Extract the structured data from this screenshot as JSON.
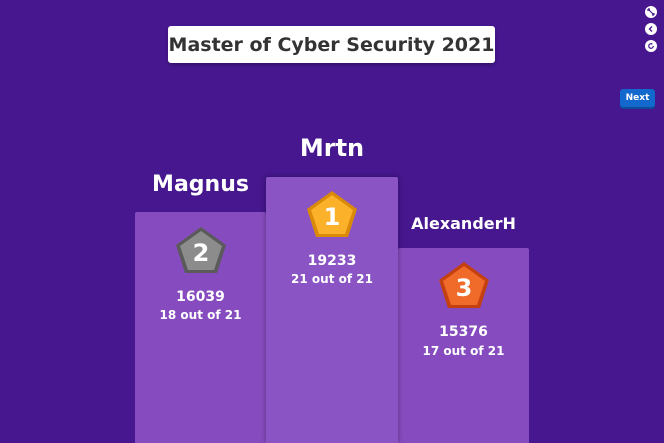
{
  "quiz": {
    "title": "Master of Cyber Security 2021"
  },
  "controls": {
    "next_label": "Next",
    "icons": [
      "fullscreen-icon",
      "back-icon",
      "reload-icon"
    ]
  },
  "podium": [
    {
      "rank": "1",
      "name": "Mrtn",
      "score": "19233",
      "correct": "21 out of 21",
      "badge_color": "#f9a51b"
    },
    {
      "rank": "2",
      "name": "Magnus",
      "score": "16039",
      "correct": "18 out of 21",
      "badge_color": "#7a7a7a"
    },
    {
      "rank": "3",
      "name": "AlexanderH",
      "score": "15376",
      "correct": "17 out of 21",
      "badge_color": "#e8571a"
    }
  ],
  "colors": {
    "background": "#46178f",
    "podium": "#864cbf",
    "next_button": "#1368ce"
  }
}
